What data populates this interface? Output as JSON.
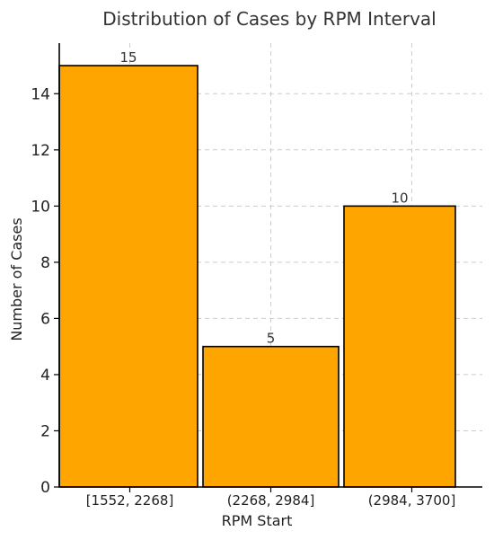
{
  "chart_data": {
    "type": "bar",
    "title": "Distribution of Cases by RPM Interval",
    "xlabel": "RPM Start",
    "ylabel": "Number of Cases",
    "categories": [
      "[1552, 2268]",
      "(2268, 2984]",
      "(2984, 3700]"
    ],
    "values": [
      15,
      5,
      10
    ],
    "data_labels": [
      "15",
      "5",
      "10"
    ],
    "ylim": [
      0,
      15.8
    ],
    "yticks": [
      0,
      2,
      4,
      6,
      8,
      10,
      12,
      14
    ],
    "grid": true,
    "bar_color": "#FFA500",
    "edge_color": "#000000"
  }
}
